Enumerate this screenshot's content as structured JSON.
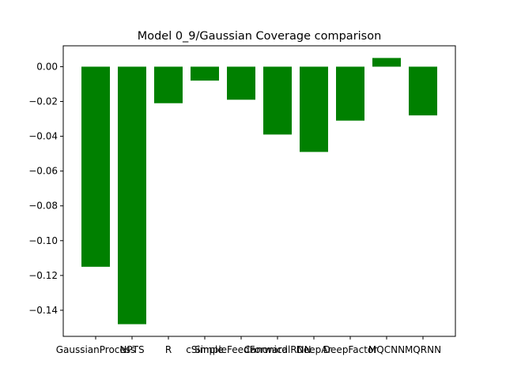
{
  "chart_data": {
    "type": "bar",
    "title": "Model 0_9/Gaussian Coverage comparison",
    "xlabel": "",
    "ylabel": "",
    "categories": [
      "GaussianProcess",
      "NPTS",
      "R",
      "cSimple",
      "SimpleFeedForward",
      "CanonicalRNN",
      "DeepAr",
      "DeepFactor",
      "MQCNN",
      "MQRNN"
    ],
    "values": [
      -0.115,
      -0.148,
      -0.021,
      -0.008,
      -0.019,
      -0.039,
      -0.049,
      -0.031,
      0.005,
      -0.028
    ],
    "ylim": [
      -0.155,
      0.012
    ],
    "yticks": [
      0.0,
      -0.02,
      -0.04,
      -0.06,
      -0.08,
      -0.1,
      -0.12,
      -0.14
    ],
    "ytick_labels": [
      "0.00",
      "−0.02",
      "−0.04",
      "−0.06",
      "−0.08",
      "−0.10",
      "−0.12",
      "−0.14"
    ],
    "bar_color": "#008000",
    "grid": false
  }
}
